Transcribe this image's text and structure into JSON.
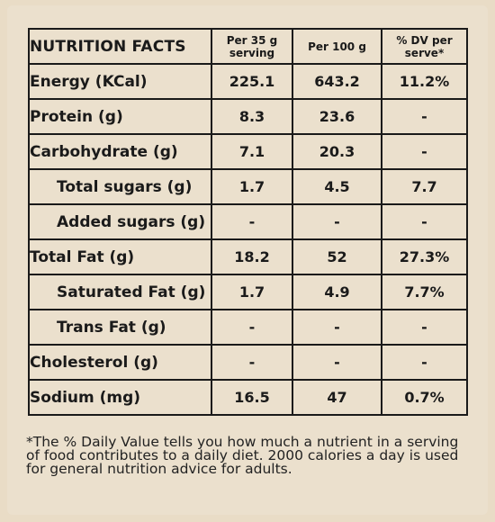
{
  "table": {
    "title": "NUTRITION FACTS",
    "col1": "Per 35 g serving",
    "col2": "Per 100 g",
    "col3": "% DV per serve*",
    "rows": [
      {
        "label": "Energy (KCal)",
        "a": "225.1",
        "b": "643.2",
        "c": "11.2%"
      },
      {
        "label": "Protein (g)",
        "a": "8.3",
        "b": "23.6",
        "c": "-"
      },
      {
        "label": "Carbohydrate (g)",
        "a": "7.1",
        "b": "20.3",
        "c": "-"
      },
      {
        "label": "Total sugars (g)",
        "a": "1.7",
        "b": "4.5",
        "c": "7.7"
      },
      {
        "label": "Added sugars (g)",
        "a": "-",
        "b": "-",
        "c": "-"
      },
      {
        "label": "Total Fat (g)",
        "a": "18.2",
        "b": "52",
        "c": "27.3%"
      },
      {
        "label": "Saturated Fat (g)",
        "a": "1.7",
        "b": "4.9",
        "c": "7.7%"
      },
      {
        "label": "Trans Fat (g)",
        "a": "-",
        "b": "-",
        "c": "-"
      },
      {
        "label": "Cholesterol (g)",
        "a": "-",
        "b": "-",
        "c": "-"
      },
      {
        "label": "Sodium (mg)",
        "a": "16.5",
        "b": "47",
        "c": "0.7%"
      }
    ]
  },
  "footnote": "*The % Daily Value tells you how much a nutrient in a serving of food contributes to a daily diet. 2000 calories a day is used for general nutrition advice for adults."
}
